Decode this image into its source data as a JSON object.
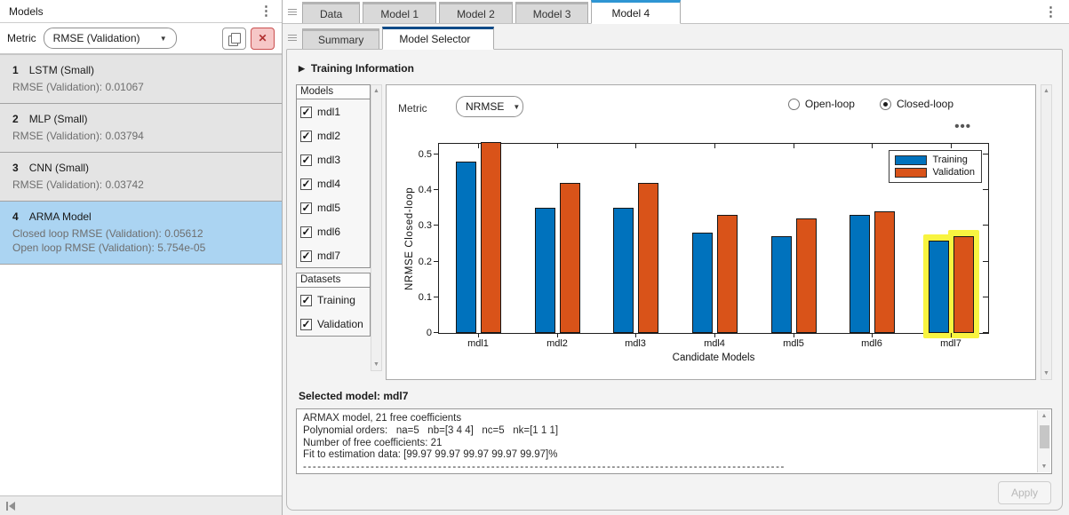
{
  "icons": {
    "kebab": "⋮",
    "close": "✕",
    "dropdown_arrow": "▼",
    "check": "✓",
    "expand_arrow": "▶",
    "scroll_up": "▲",
    "scroll_down": "▼",
    "dots_menu": "•••"
  },
  "colors": {
    "accent_tab_blue": "#2e95d3",
    "subtab_navy": "#0e4a87",
    "selected_card_blue": "#abd4f2",
    "bar_training_blue": "#0072BD",
    "bar_validation_orange": "#D95319",
    "highlight_yellow": "#f8f440",
    "close_button_red": "#c94f4f"
  },
  "left_panel": {
    "title": "Models",
    "metric_label": "Metric",
    "metric_value": "RMSE (Validation)",
    "models": [
      {
        "index": "1",
        "name": "LSTM (Small)",
        "selected": false,
        "lines": [
          "RMSE (Validation): 0.01067"
        ]
      },
      {
        "index": "2",
        "name": "MLP (Small)",
        "selected": false,
        "lines": [
          "RMSE (Validation): 0.03794"
        ]
      },
      {
        "index": "3",
        "name": "CNN (Small)",
        "selected": false,
        "lines": [
          "RMSE (Validation): 0.03742"
        ]
      },
      {
        "index": "4",
        "name": "ARMA Model",
        "selected": true,
        "lines": [
          "Closed loop RMSE (Validation): 0.05612",
          "Open loop RMSE (Validation): 5.754e-05"
        ]
      }
    ]
  },
  "tabs": {
    "items": [
      "Data",
      "Model 1",
      "Model 2",
      "Model 3",
      "Model 4"
    ],
    "active": "Model 4"
  },
  "subtabs": {
    "items": [
      "Summary",
      "Model Selector"
    ],
    "active": "Model Selector"
  },
  "selector": {
    "training_info_label": "Training Information",
    "models_panel": {
      "title": "Models",
      "items": [
        {
          "label": "mdl1",
          "checked": true
        },
        {
          "label": "mdl2",
          "checked": true
        },
        {
          "label": "mdl3",
          "checked": true
        },
        {
          "label": "mdl4",
          "checked": true
        },
        {
          "label": "mdl5",
          "checked": true
        },
        {
          "label": "mdl6",
          "checked": true
        },
        {
          "label": "mdl7",
          "checked": true
        }
      ]
    },
    "datasets_panel": {
      "title": "Datasets",
      "items": [
        {
          "label": "Training",
          "checked": true
        },
        {
          "label": "Validation",
          "checked": true
        }
      ]
    },
    "metric_label": "Metric",
    "metric_value": "NRMSE",
    "radios": [
      {
        "label": "Open-loop",
        "selected": false
      },
      {
        "label": "Closed-loop",
        "selected": true
      }
    ],
    "selected_model_label": "Selected model: mdl7",
    "details_lines": [
      "ARMAX model, 21 free coefficients",
      "Polynomial orders:   na=5   nb=[3 4 4]   nc=5   nk=[1 1 1]",
      "Number of free coefficients: 21",
      "Fit to estimation data: [99.97 99.97 99.97 99.97 99.97]%",
      "----------------------------------------------------------------------------------------------------"
    ],
    "apply_label": "Apply"
  },
  "chart_data": {
    "type": "bar",
    "title": "",
    "categories": [
      "mdl1",
      "mdl2",
      "mdl3",
      "mdl4",
      "mdl5",
      "mdl6",
      "mdl7"
    ],
    "series": [
      {
        "name": "Training",
        "color": "#0072BD",
        "values": [
          0.48,
          0.35,
          0.35,
          0.28,
          0.27,
          0.33,
          0.26
        ]
      },
      {
        "name": "Validation",
        "color": "#D95319",
        "values": [
          0.54,
          0.42,
          0.42,
          0.33,
          0.32,
          0.34,
          0.27
        ]
      }
    ],
    "xlabel": "Candidate Models",
    "ylabel": "NRMSE Closed-loop",
    "ylim": [
      0,
      0.535
    ],
    "yticks": [
      0,
      0.1,
      0.2,
      0.3,
      0.4,
      0.5
    ],
    "grid": false,
    "legend_position": "top-right",
    "highlighted_category": "mdl7",
    "highlight_color": "#f8f440",
    "note": "Validation bar for mdl1 is clipped at the axes top"
  }
}
